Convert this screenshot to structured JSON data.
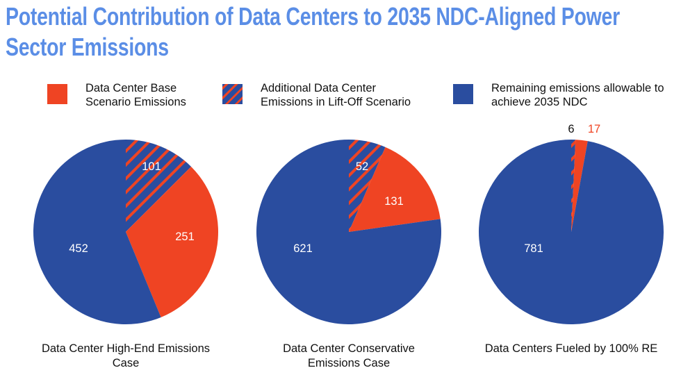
{
  "title": "Potential Contribution of Data Centers to 2035 NDC-Aligned Power Sector Emissions",
  "colors": {
    "title": "#5b8ee6",
    "base": "#ef4423",
    "remaining": "#2a4d9f",
    "hatch_bg": "#2a4d9f",
    "hatch_stripe": "#ef4423"
  },
  "legend": [
    {
      "label": "Data Center Base Scenario Emissions",
      "style": "solid-orange"
    },
    {
      "label": "Additional Data Center Emissions in Lift-Off Scenario",
      "style": "hatched"
    },
    {
      "label": "Remaining emissions allowable to achieve 2035 NDC",
      "style": "solid-blue"
    }
  ],
  "chart_data": [
    {
      "type": "pie",
      "caption": "Data Center High-End Emissions Case",
      "start": "12 o'clock, clockwise",
      "slices": [
        {
          "series": "Additional Data Center Emissions in Lift-Off Scenario",
          "value": 101
        },
        {
          "series": "Data Center Base Scenario Emissions",
          "value": 251
        },
        {
          "series": "Remaining emissions allowable to achieve 2035 NDC",
          "value": 452
        }
      ]
    },
    {
      "type": "pie",
      "caption": "Data Center Conservative Emissions Case",
      "start": "12 o'clock, clockwise",
      "slices": [
        {
          "series": "Additional Data Center Emissions in Lift-Off Scenario",
          "value": 52
        },
        {
          "series": "Data Center Base Scenario Emissions",
          "value": 131
        },
        {
          "series": "Remaining emissions allowable to achieve 2035 NDC",
          "value": 621
        }
      ]
    },
    {
      "type": "pie",
      "caption": "Data Centers Fueled by 100% RE",
      "start": "12 o'clock, clockwise",
      "slices": [
        {
          "series": "Additional Data Center Emissions in Lift-Off Scenario",
          "value": 6
        },
        {
          "series": "Data Center Base Scenario Emissions",
          "value": 17
        },
        {
          "series": "Remaining emissions allowable to achieve 2035 NDC",
          "value": 781
        }
      ]
    }
  ]
}
